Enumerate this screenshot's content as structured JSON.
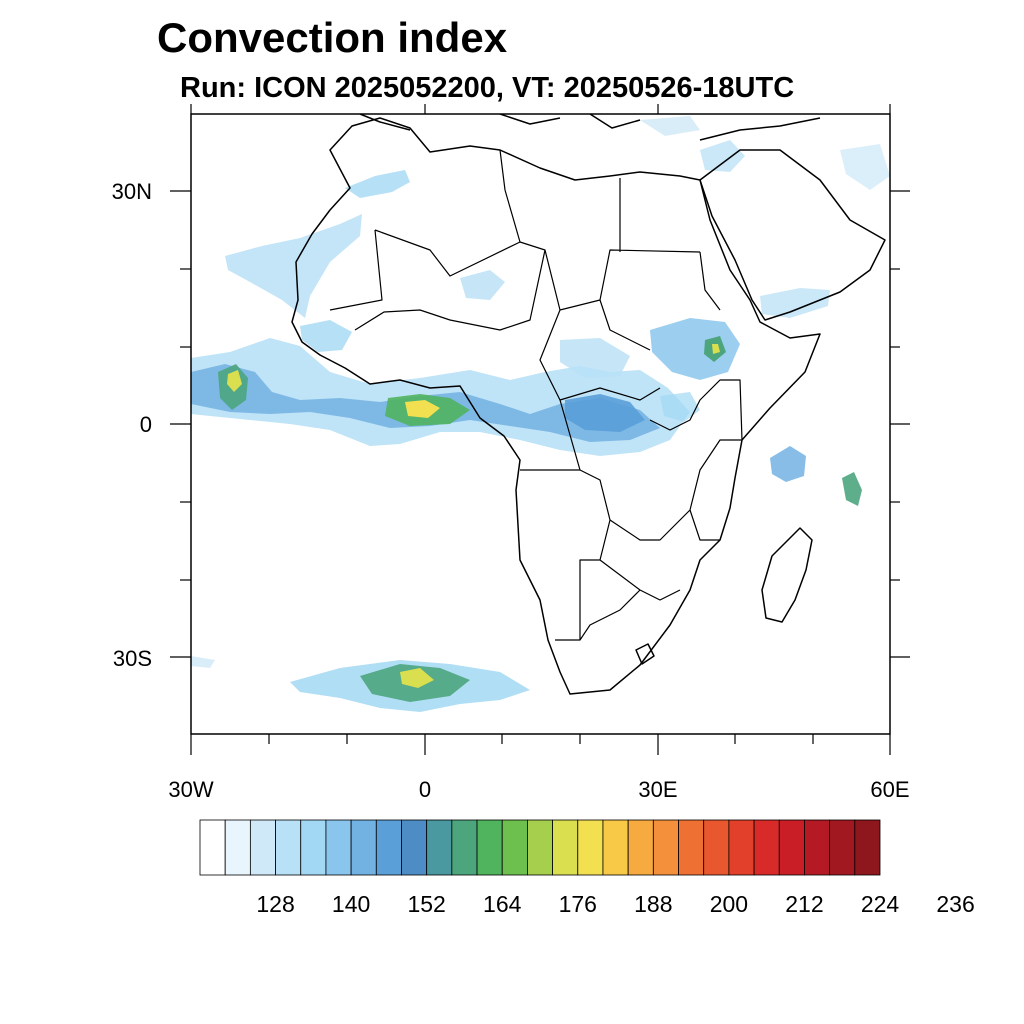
{
  "title": "Convection index",
  "subtitle": "Run: ICON 2025052200,  VT: 20250526-18UTC",
  "map": {
    "x_tick_labels": [
      "30W",
      "0",
      "30E",
      "60E"
    ],
    "y_tick_labels": [
      "30N",
      "0",
      "30S"
    ],
    "x_range_deg": [
      -30,
      60
    ],
    "y_range_deg": [
      -40,
      40
    ],
    "coastline_color": "#000000",
    "ocean_color": "#ffffff"
  },
  "colorbar": {
    "labels": [
      "128",
      "140",
      "152",
      "164",
      "176",
      "188",
      "200",
      "212",
      "224",
      "236"
    ],
    "colors": [
      "#ffffff",
      "#e8f5fc",
      "#cfe9f8",
      "#b8e0f6",
      "#a2d8f3",
      "#89c5ec",
      "#72b2e3",
      "#5a9fd8",
      "#4d8cc4",
      "#4a98a0",
      "#4da57e",
      "#50b35e",
      "#6ec04e",
      "#a6cf4d",
      "#d9df4f",
      "#f2e051",
      "#f8c947",
      "#f7aa3f",
      "#f4903b",
      "#ef7033",
      "#e9572e",
      "#e2402b",
      "#d82a29",
      "#c91e26",
      "#b51a24",
      "#a21821",
      "#8e161d"
    ]
  }
}
